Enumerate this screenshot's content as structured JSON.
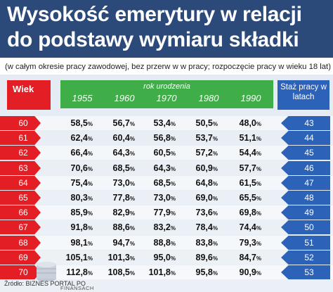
{
  "title_line1": "Wysokość emerytury w relacji",
  "title_line2": "do podstawy wymiaru składki",
  "subtitle": "(w całym okresie pracy zawodowej, bez przerw w w pracy; rozpoczęcie pracy w wieku 18 lat)",
  "header_wiek": "Wiek",
  "header_rok": "rok urodzenia",
  "header_staz": "Staż pracy w latach",
  "footer_source": "Źródło: BIZNES PORTAL PO",
  "footer_brand": "FINANSACH",
  "colors": {
    "title_bg": "#2b4a79",
    "red": "#e31e24",
    "green": "#3fae49",
    "blue": "#2c62b8"
  },
  "chart_data": {
    "type": "table",
    "years": [
      "1955",
      "1960",
      "1970",
      "1980",
      "1990"
    ],
    "rows": [
      {
        "age": "60",
        "staz": "43",
        "values": [
          "58,5",
          "56,7",
          "53,4",
          "50,5",
          "48,0"
        ]
      },
      {
        "age": "61",
        "staz": "44",
        "values": [
          "62,4",
          "60,4",
          "56,8",
          "53,7",
          "51,1"
        ]
      },
      {
        "age": "62",
        "staz": "45",
        "values": [
          "66,4",
          "64,3",
          "60,5",
          "57,2",
          "54,4"
        ]
      },
      {
        "age": "63",
        "staz": "46",
        "values": [
          "70,6",
          "68,5",
          "64,3",
          "60,9",
          "57,7"
        ]
      },
      {
        "age": "64",
        "staz": "47",
        "values": [
          "75,4",
          "73,0",
          "68,5",
          "64,8",
          "61,5"
        ]
      },
      {
        "age": "65",
        "staz": "48",
        "values": [
          "80,3",
          "77,8",
          "73,0",
          "69,0",
          "65,5"
        ]
      },
      {
        "age": "66",
        "staz": "49",
        "values": [
          "85,9",
          "82,9",
          "77,9",
          "73,6",
          "69,8"
        ]
      },
      {
        "age": "67",
        "staz": "50",
        "values": [
          "91,8",
          "88,6",
          "83,2",
          "78,4",
          "74,4"
        ]
      },
      {
        "age": "68",
        "staz": "51",
        "values": [
          "98,1",
          "94,7",
          "88,8",
          "83,8",
          "79,3"
        ]
      },
      {
        "age": "69",
        "staz": "52",
        "values": [
          "105,1",
          "101,3",
          "95,0",
          "89,6",
          "84,7"
        ]
      },
      {
        "age": "70",
        "staz": "53",
        "values": [
          "112,8",
          "108,5",
          "101,8",
          "95,8",
          "90,9"
        ]
      }
    ],
    "unit": "%"
  }
}
